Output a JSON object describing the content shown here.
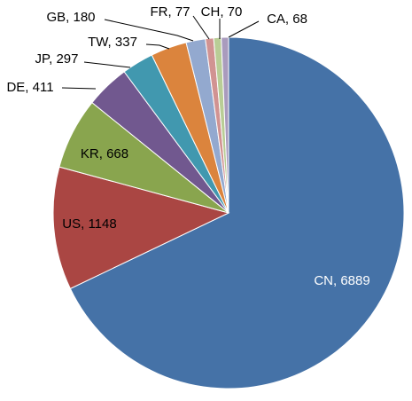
{
  "chart_data": {
    "type": "pie",
    "categories": [
      "CN",
      "US",
      "KR",
      "DE",
      "JP",
      "TW",
      "GB",
      "FR",
      "CH",
      "CA"
    ],
    "values": [
      6889,
      1148,
      668,
      411,
      297,
      337,
      180,
      77,
      70,
      68
    ],
    "value_labels": [
      "CN, 6889",
      "US, 1148",
      "KR, 668",
      "DE, 411",
      "JP, 297",
      "TW, 337",
      "GB, 180",
      "FR, 77",
      "CH, 70",
      "CA, 68"
    ],
    "colors": [
      "#4572a7",
      "#aa4643",
      "#89a54e",
      "#71588f",
      "#4198af",
      "#db843d",
      "#93a9cf",
      "#d19392",
      "#b9cd96",
      "#a99bbd"
    ]
  }
}
